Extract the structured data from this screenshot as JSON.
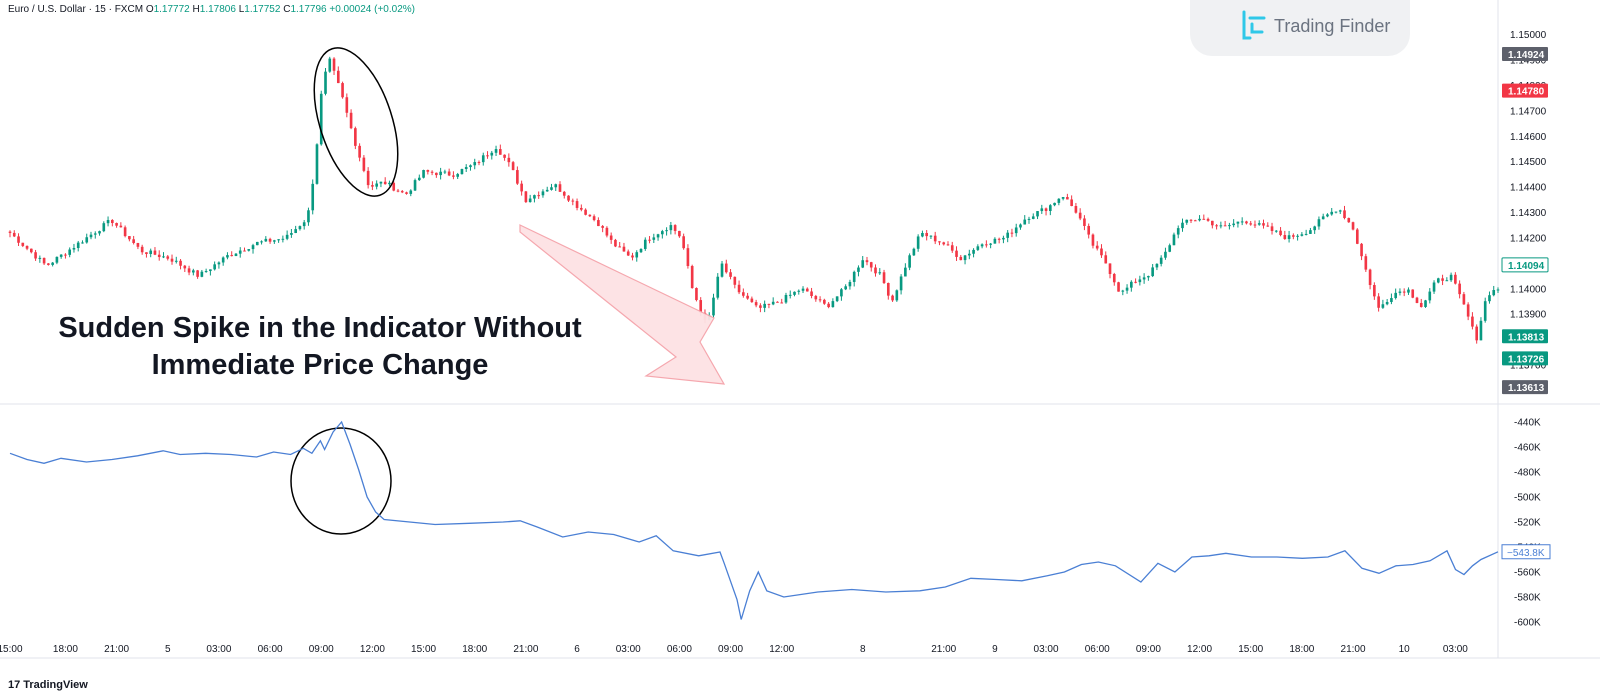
{
  "header": {
    "symbol": "Euro / U.S. Dollar · 15 · FXCM",
    "open_label": "O",
    "open": "1.17772",
    "high_label": "H",
    "high": "1.17806",
    "low_label": "L",
    "low": "1.17752",
    "close_label": "C",
    "close": "1.17796",
    "change": "+0.00024 (+0.02%)"
  },
  "logo": {
    "text": "Trading Finder"
  },
  "annotation": {
    "line1": "Sudden Spike in the Indicator Without",
    "line2": "Immediate Price Change"
  },
  "footer": {
    "brand": "TradingView",
    "brand_mark": "17"
  },
  "colors": {
    "up": "#089981",
    "down": "#f23645",
    "indicator": "#4a7fd4",
    "arrow_fill": "#fde2e4",
    "arrow_stroke": "#f5a3aa",
    "grid": "#f0f3fa"
  },
  "chart_data": [
    {
      "type": "candlestick",
      "title": "",
      "ylim": [
        1.1357,
        1.1505
      ],
      "y_ticks": [
        "1.15000",
        "1.14900",
        "1.14800",
        "1.14700",
        "1.14600",
        "1.14500",
        "1.14400",
        "1.14300",
        "1.14200",
        "1.14100",
        "1.14000",
        "1.13900",
        "1.13800",
        "1.13700"
      ],
      "price_labels": [
        {
          "value": "1.14924",
          "price": 1.14924,
          "style": "gray"
        },
        {
          "value": "1.14780",
          "price": 1.1478,
          "style": "red"
        },
        {
          "value": "1.14094",
          "price": 1.14094,
          "style": "outline"
        },
        {
          "value": "1.13813",
          "price": 1.13813,
          "style": "green"
        },
        {
          "value": "1.13726",
          "price": 1.13726,
          "style": "green"
        },
        {
          "value": "1.13613",
          "price": 1.13613,
          "style": "gray"
        }
      ],
      "anchors": [
        [
          0,
          1.1422
        ],
        [
          10,
          1.1409
        ],
        [
          20,
          1.1419
        ],
        [
          28,
          1.1427
        ],
        [
          36,
          1.1415
        ],
        [
          44,
          1.1412
        ],
        [
          52,
          1.1405
        ],
        [
          60,
          1.1413
        ],
        [
          68,
          1.1418
        ],
        [
          76,
          1.142
        ],
        [
          82,
          1.1428
        ],
        [
          84,
          1.1448
        ],
        [
          86,
          1.148
        ],
        [
          88,
          1.149
        ],
        [
          91,
          1.1478
        ],
        [
          95,
          1.1458
        ],
        [
          99,
          1.144
        ],
        [
          103,
          1.1442
        ],
        [
          109,
          1.1437
        ],
        [
          114,
          1.1446
        ],
        [
          122,
          1.1445
        ],
        [
          128,
          1.1449
        ],
        [
          134,
          1.1456
        ],
        [
          138,
          1.1448
        ],
        [
          142,
          1.1435
        ],
        [
          150,
          1.1441
        ],
        [
          156,
          1.1433
        ],
        [
          162,
          1.1426
        ],
        [
          166,
          1.1418
        ],
        [
          171,
          1.1412
        ],
        [
          176,
          1.142
        ],
        [
          182,
          1.1425
        ],
        [
          185,
          1.142
        ],
        [
          188,
          1.14
        ],
        [
          192,
          1.1385
        ],
        [
          196,
          1.141
        ],
        [
          200,
          1.14
        ],
        [
          206,
          1.1392
        ],
        [
          212,
          1.1395
        ],
        [
          218,
          1.14
        ],
        [
          225,
          1.1393
        ],
        [
          230,
          1.14
        ],
        [
          235,
          1.1412
        ],
        [
          240,
          1.1405
        ],
        [
          243,
          1.1395
        ],
        [
          247,
          1.141
        ],
        [
          251,
          1.1422
        ],
        [
          257,
          1.1418
        ],
        [
          262,
          1.1412
        ],
        [
          268,
          1.1418
        ],
        [
          274,
          1.142
        ],
        [
          280,
          1.1428
        ],
        [
          286,
          1.1432
        ],
        [
          290,
          1.1437
        ],
        [
          294,
          1.143
        ],
        [
          298,
          1.1418
        ],
        [
          302,
          1.141
        ],
        [
          306,
          1.1398
        ],
        [
          310,
          1.1403
        ],
        [
          314,
          1.1406
        ],
        [
          318,
          1.1413
        ],
        [
          322,
          1.1425
        ],
        [
          328,
          1.1428
        ],
        [
          334,
          1.1424
        ],
        [
          340,
          1.1427
        ],
        [
          346,
          1.1424
        ],
        [
          352,
          1.142
        ],
        [
          358,
          1.1423
        ],
        [
          362,
          1.1428
        ],
        [
          366,
          1.1432
        ],
        [
          370,
          1.1424
        ],
        [
          373,
          1.141
        ],
        [
          377,
          1.1392
        ],
        [
          381,
          1.1398
        ],
        [
          385,
          1.14
        ],
        [
          389,
          1.1393
        ],
        [
          393,
          1.1403
        ],
        [
          397,
          1.1405
        ],
        [
          401,
          1.1392
        ],
        [
          404,
          1.138
        ],
        [
          407,
          1.1398
        ],
        [
          410,
          1.14
        ]
      ],
      "x_ticks": [
        {
          "label": "15:00",
          "index": 0
        },
        {
          "label": "18:00",
          "index": 13
        },
        {
          "label": "21:00",
          "index": 25
        },
        {
          "label": "5",
          "index": 37
        },
        {
          "label": "03:00",
          "index": 49
        },
        {
          "label": "06:00",
          "index": 61
        },
        {
          "label": "09:00",
          "index": 73
        },
        {
          "label": "12:00",
          "index": 85
        },
        {
          "label": "15:00",
          "index": 97
        },
        {
          "label": "18:00",
          "index": 109
        },
        {
          "label": "21:00",
          "index": 121
        },
        {
          "label": "6",
          "index": 133
        },
        {
          "label": "03:00",
          "index": 145
        },
        {
          "label": "06:00",
          "index": 157
        },
        {
          "label": "09:00",
          "index": 169
        },
        {
          "label": "12:00",
          "index": 181
        },
        {
          "label": "8",
          "index": 200
        },
        {
          "label": "21:00",
          "index": 219
        },
        {
          "label": "9",
          "index": 231
        },
        {
          "label": "03:00",
          "index": 243
        },
        {
          "label": "06:00",
          "index": 255
        },
        {
          "label": "09:00",
          "index": 267
        },
        {
          "label": "12:00",
          "index": 279
        },
        {
          "label": "15:00",
          "index": 291
        },
        {
          "label": "18:00",
          "index": 303
        },
        {
          "label": "21:00",
          "index": 315
        },
        {
          "label": "10",
          "index": 327
        },
        {
          "label": "03:00",
          "index": 339
        }
      ],
      "x_count": 350
    },
    {
      "type": "line",
      "title": "",
      "ylim": [
        -608,
        -432
      ],
      "y_ticks": [
        "-440K",
        "-460K",
        "-480K",
        "-500K",
        "-520K",
        "-540K",
        "-560K",
        "-580K",
        "-600K"
      ],
      "y_tick_values": [
        -440,
        -460,
        -480,
        -500,
        -520,
        -540,
        -560,
        -580,
        -600
      ],
      "last_value_label": "−543.8K",
      "last_value": -543.8,
      "points": [
        [
          0,
          -465
        ],
        [
          4,
          -470
        ],
        [
          8,
          -473
        ],
        [
          12,
          -469
        ],
        [
          18,
          -472
        ],
        [
          24,
          -470
        ],
        [
          30,
          -467
        ],
        [
          36,
          -463
        ],
        [
          40,
          -466
        ],
        [
          46,
          -465
        ],
        [
          52,
          -466
        ],
        [
          58,
          -468
        ],
        [
          62,
          -464
        ],
        [
          66,
          -466
        ],
        [
          69,
          -461
        ],
        [
          71,
          -465
        ],
        [
          73,
          -455
        ],
        [
          74,
          -462
        ],
        [
          76,
          -448
        ],
        [
          78,
          -440
        ],
        [
          80,
          -458
        ],
        [
          82,
          -478
        ],
        [
          84,
          -500
        ],
        [
          86,
          -512
        ],
        [
          88,
          -518
        ],
        [
          94,
          -520
        ],
        [
          100,
          -522
        ],
        [
          108,
          -521
        ],
        [
          116,
          -520
        ],
        [
          120,
          -519
        ],
        [
          124,
          -524
        ],
        [
          130,
          -532
        ],
        [
          136,
          -528
        ],
        [
          142,
          -530
        ],
        [
          148,
          -536
        ],
        [
          152,
          -531
        ],
        [
          156,
          -543
        ],
        [
          162,
          -547
        ],
        [
          167,
          -544
        ],
        [
          168,
          -553
        ],
        [
          171,
          -582
        ],
        [
          172,
          -598
        ],
        [
          174,
          -575
        ],
        [
          176,
          -560
        ],
        [
          178,
          -575
        ],
        [
          182,
          -580
        ],
        [
          190,
          -576
        ],
        [
          198,
          -574
        ],
        [
          206,
          -576
        ],
        [
          214,
          -575
        ],
        [
          220,
          -572
        ],
        [
          226,
          -565
        ],
        [
          232,
          -566
        ],
        [
          238,
          -567
        ],
        [
          244,
          -563
        ],
        [
          248,
          -560
        ],
        [
          252,
          -554
        ],
        [
          256,
          -552
        ],
        [
          260,
          -555
        ],
        [
          266,
          -568
        ],
        [
          270,
          -553
        ],
        [
          274,
          -560
        ],
        [
          278,
          -548
        ],
        [
          282,
          -547
        ],
        [
          286,
          -545
        ],
        [
          292,
          -548
        ],
        [
          298,
          -548
        ],
        [
          304,
          -549
        ],
        [
          310,
          -548
        ],
        [
          314,
          -543
        ],
        [
          318,
          -557
        ],
        [
          322,
          -561
        ],
        [
          326,
          -555
        ],
        [
          330,
          -554
        ],
        [
          334,
          -551
        ],
        [
          338,
          -543
        ],
        [
          340,
          -558
        ],
        [
          342,
          -562
        ],
        [
          344,
          -555
        ],
        [
          346,
          -550
        ],
        [
          350,
          -543.8
        ]
      ],
      "x_count": 350
    }
  ]
}
